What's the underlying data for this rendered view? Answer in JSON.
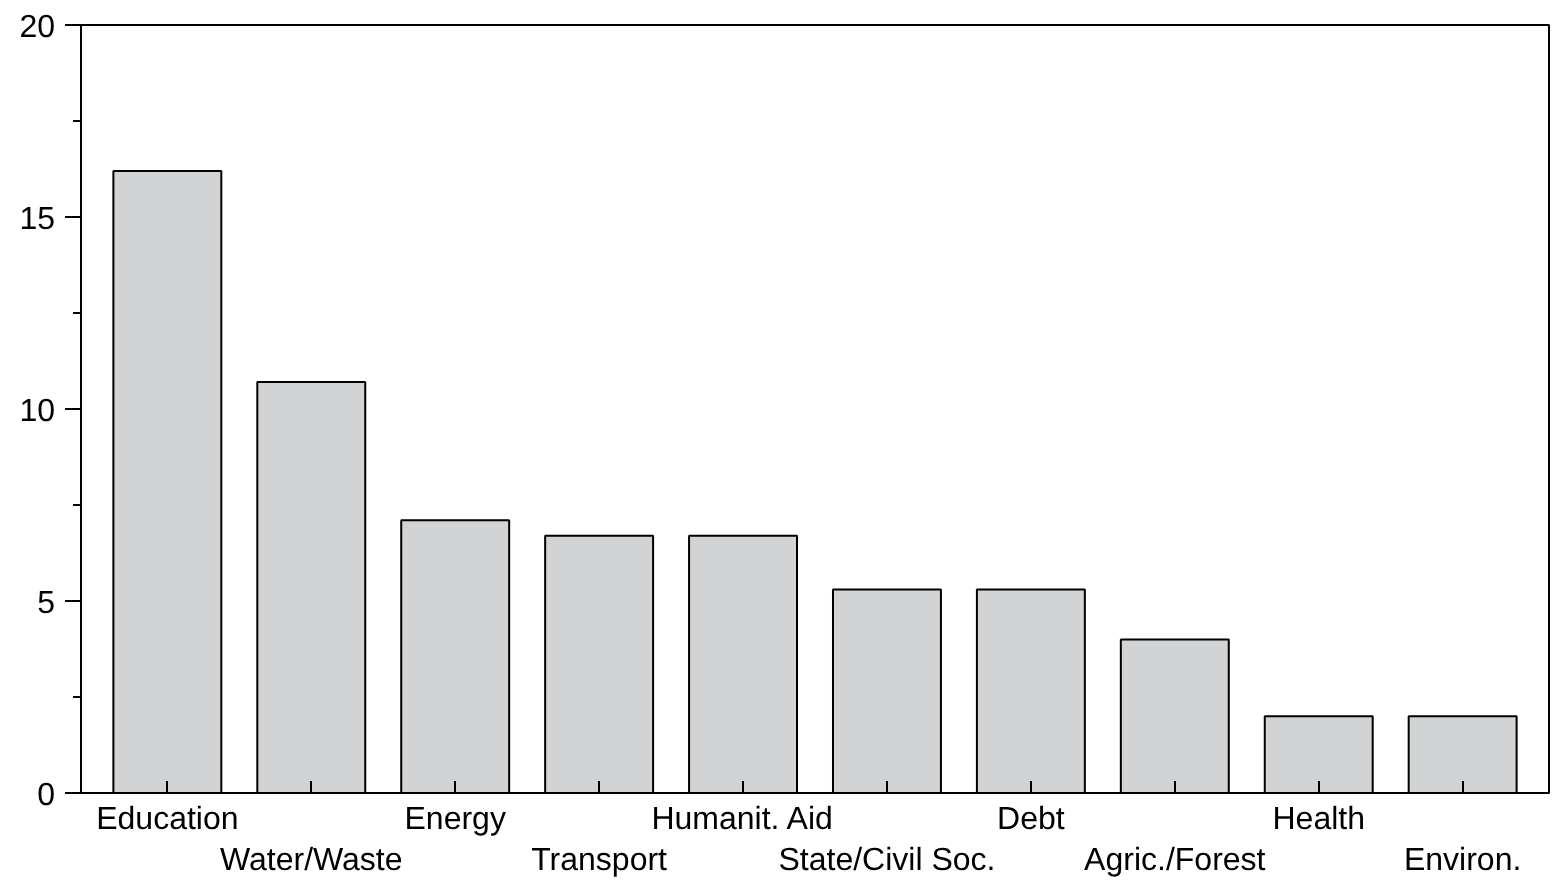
{
  "chart_data": {
    "type": "bar",
    "categories": [
      "Education",
      "Water/Waste",
      "Energy",
      "Transport",
      "Humanit. Aid",
      "State/Civil Soc.",
      "Debt",
      "Agric./Forest",
      "Health",
      "Environ."
    ],
    "values": [
      16.2,
      10.7,
      7.1,
      6.7,
      6.7,
      5.3,
      5.3,
      4.0,
      2.0,
      2.0
    ],
    "color": "#d1d3d4",
    "ylim": [
      0,
      20
    ],
    "yticks": [
      0,
      {
        "value": 2.5,
        "label": null
      },
      5,
      {
        "value": 7.5,
        "label": null
      },
      10,
      {
        "value": 12.5,
        "label": null
      },
      15,
      {
        "value": 17.5,
        "label": null
      },
      20
    ],
    "grid": false
  }
}
